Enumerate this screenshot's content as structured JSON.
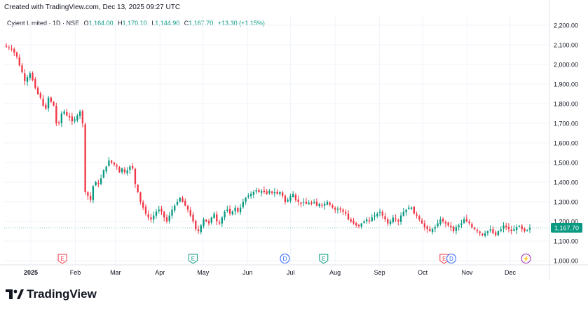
{
  "header": {
    "caption": "Created with TradingView.com, Dec 13, 2025 09:27 UTC"
  },
  "legend": {
    "symbol": "Cyient Limited · 1D · NSE",
    "o_label": "O",
    "o_value": "1,164.00",
    "h_label": "H",
    "h_value": "1,170.10",
    "l_label": "L",
    "l_value": "1,144.90",
    "c_label": "C",
    "c_value": "1,167.70",
    "change": "+13.30 (+1.15%)"
  },
  "price_tag": "1,167.70",
  "brand": "TradingView",
  "colors": {
    "up": "#089981",
    "down": "#f23645",
    "grid": "#f0f3fa",
    "axis_text": "#131722"
  },
  "chart_data": {
    "type": "candlestick",
    "title": "",
    "yticks": [
      "2,200.00",
      "2,100.00",
      "2,000.00",
      "1,900.00",
      "1,800.00",
      "1,700.00",
      "1,600.00",
      "1,500.00",
      "1,400.00",
      "1,300.00",
      "1,200.00",
      "1,100.00",
      "1,000.00"
    ],
    "ylim": [
      1000,
      2200
    ],
    "xticks": [
      "2025",
      "Feb",
      "Mar",
      "Apr",
      "May",
      "Jun",
      "Jul",
      "Aug",
      "Sep",
      "Oct",
      "Nov",
      "Dec"
    ],
    "last_price": 1167.7,
    "events": [
      {
        "kind": "earnings",
        "label": "E",
        "color": "#f23645",
        "date": "2025-01-23"
      },
      {
        "kind": "earnings",
        "label": "E",
        "color": "#089981",
        "date": "2025-04-24"
      },
      {
        "kind": "dividend",
        "label": "D",
        "color": "#2962ff",
        "date": "2025-06-27"
      },
      {
        "kind": "earnings",
        "label": "E",
        "color": "#089981",
        "date": "2025-07-24"
      },
      {
        "kind": "earnings",
        "label": "E",
        "color": "#f23645",
        "date": "2025-10-16"
      },
      {
        "kind": "dividend",
        "label": "D",
        "color": "#2962ff",
        "date": "2025-10-21"
      },
      {
        "kind": "split",
        "label": "⚡",
        "color": "#9c27b0",
        "date": "2025-12-12"
      }
    ],
    "closes": [
      2090,
      2085,
      2080,
      2060,
      2040,
      1995,
      1960,
      1915,
      1935,
      1955,
      1920,
      1880,
      1850,
      1830,
      1790,
      1775,
      1830,
      1810,
      1790,
      1700,
      1700,
      1750,
      1760,
      1740,
      1730,
      1710,
      1720,
      1740,
      1760,
      1700,
      1350,
      1330,
      1310,
      1380,
      1400,
      1390,
      1420,
      1460,
      1480,
      1510,
      1500,
      1490,
      1480,
      1450,
      1470,
      1450,
      1460,
      1480,
      1470,
      1390,
      1350,
      1300,
      1270,
      1240,
      1220,
      1210,
      1230,
      1250,
      1260,
      1250,
      1220,
      1200,
      1230,
      1260,
      1280,
      1300,
      1320,
      1300,
      1280,
      1260,
      1230,
      1200,
      1160,
      1150,
      1180,
      1210,
      1200,
      1190,
      1220,
      1240,
      1200,
      1190,
      1220,
      1250,
      1260,
      1240,
      1250,
      1270,
      1250,
      1270,
      1300,
      1320,
      1330,
      1340,
      1350,
      1360,
      1350,
      1355,
      1350,
      1340,
      1355,
      1345,
      1350,
      1340,
      1350,
      1330,
      1300,
      1310,
      1330,
      1340,
      1310,
      1300,
      1290,
      1300,
      1290,
      1295,
      1290,
      1300,
      1280,
      1290,
      1280,
      1290,
      1300,
      1285,
      1270,
      1260,
      1265,
      1260,
      1250,
      1240,
      1210,
      1200,
      1190,
      1180,
      1175,
      1190,
      1200,
      1210,
      1200,
      1220,
      1230,
      1240,
      1250,
      1230,
      1210,
      1190,
      1200,
      1220,
      1210,
      1200,
      1230,
      1250,
      1260,
      1270,
      1270,
      1240,
      1230,
      1210,
      1190,
      1170,
      1160,
      1150,
      1160,
      1170,
      1190,
      1210,
      1200,
      1190,
      1180,
      1170,
      1150,
      1170,
      1180,
      1190,
      1210,
      1200,
      1190,
      1170,
      1160,
      1150,
      1140,
      1130,
      1140,
      1150,
      1160,
      1140,
      1130,
      1150,
      1160,
      1180,
      1170,
      1160,
      1150,
      1160,
      1170,
      1175,
      1160,
      1150,
      1155,
      1167.7
    ]
  }
}
